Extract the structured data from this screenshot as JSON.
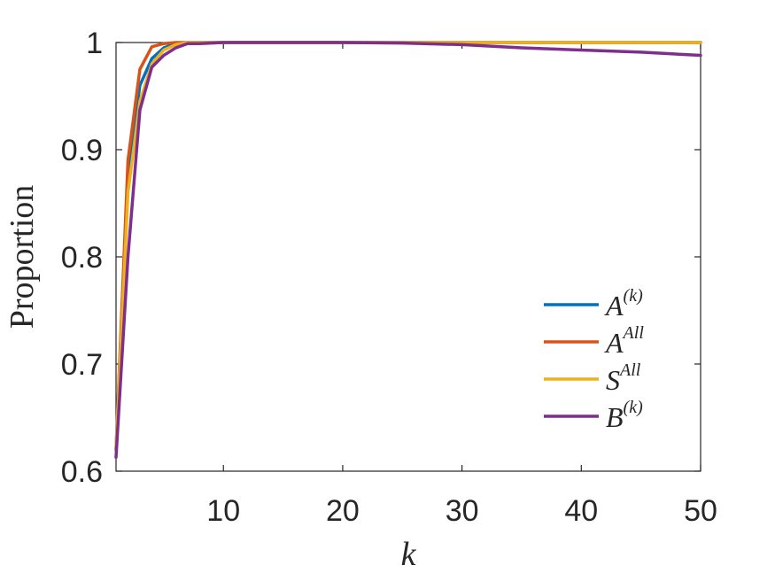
{
  "chart_data": {
    "type": "line",
    "xlabel": "k",
    "ylabel": "Proportion",
    "xlim": [
      1,
      50
    ],
    "ylim": [
      0.6,
      1.0
    ],
    "xticks": [
      10,
      20,
      30,
      40,
      50
    ],
    "yticks": [
      0.6,
      0.7,
      0.8,
      0.9,
      1.0
    ],
    "ytick_labels": [
      "0.6",
      "0.7",
      "0.8",
      "0.9",
      "1"
    ],
    "grid": false,
    "legend_position": "bottom-right",
    "series": [
      {
        "name": "A",
        "superscript": "(k)",
        "color": "#0072BD",
        "x": [
          1,
          2,
          3,
          4,
          5,
          6,
          7,
          8,
          10,
          15,
          20,
          25,
          30,
          35,
          40,
          45,
          50
        ],
        "y": [
          0.62,
          0.88,
          0.96,
          0.985,
          0.995,
          0.999,
          1.0,
          1.0,
          1.0,
          1.0,
          1.0,
          1.0,
          1.0,
          1.0,
          1.0,
          1.0,
          1.0
        ]
      },
      {
        "name": "A",
        "superscript": "All",
        "color": "#D95319",
        "x": [
          1,
          2,
          3,
          4,
          5,
          6,
          7,
          8,
          10,
          15,
          20,
          25,
          30,
          35,
          40,
          45,
          50
        ],
        "y": [
          0.62,
          0.89,
          0.975,
          0.996,
          0.999,
          1.0,
          1.0,
          1.0,
          1.0,
          1.0,
          1.0,
          1.0,
          1.0,
          1.0,
          1.0,
          1.0,
          1.0
        ]
      },
      {
        "name": "S",
        "superscript": "All",
        "color": "#EDB120",
        "x": [
          1,
          2,
          3,
          4,
          5,
          6,
          7,
          8,
          10,
          15,
          20,
          25,
          30,
          35,
          40,
          45,
          50
        ],
        "y": [
          0.62,
          0.86,
          0.945,
          0.98,
          0.993,
          0.998,
          1.0,
          1.0,
          1.0,
          1.0,
          1.0,
          1.0,
          1.0,
          1.0,
          1.0,
          1.0,
          1.0
        ]
      },
      {
        "name": "B",
        "superscript": "(k)",
        "color": "#7E2F8E",
        "x": [
          1,
          2,
          3,
          4,
          5,
          6,
          7,
          8,
          10,
          12,
          15,
          20,
          25,
          30,
          35,
          40,
          45,
          50
        ],
        "y": [
          0.613,
          0.8,
          0.937,
          0.977,
          0.988,
          0.995,
          0.999,
          0.999,
          1.0,
          1.0,
          1.0,
          1.0,
          0.9995,
          0.998,
          0.995,
          0.993,
          0.991,
          0.988
        ]
      }
    ]
  }
}
